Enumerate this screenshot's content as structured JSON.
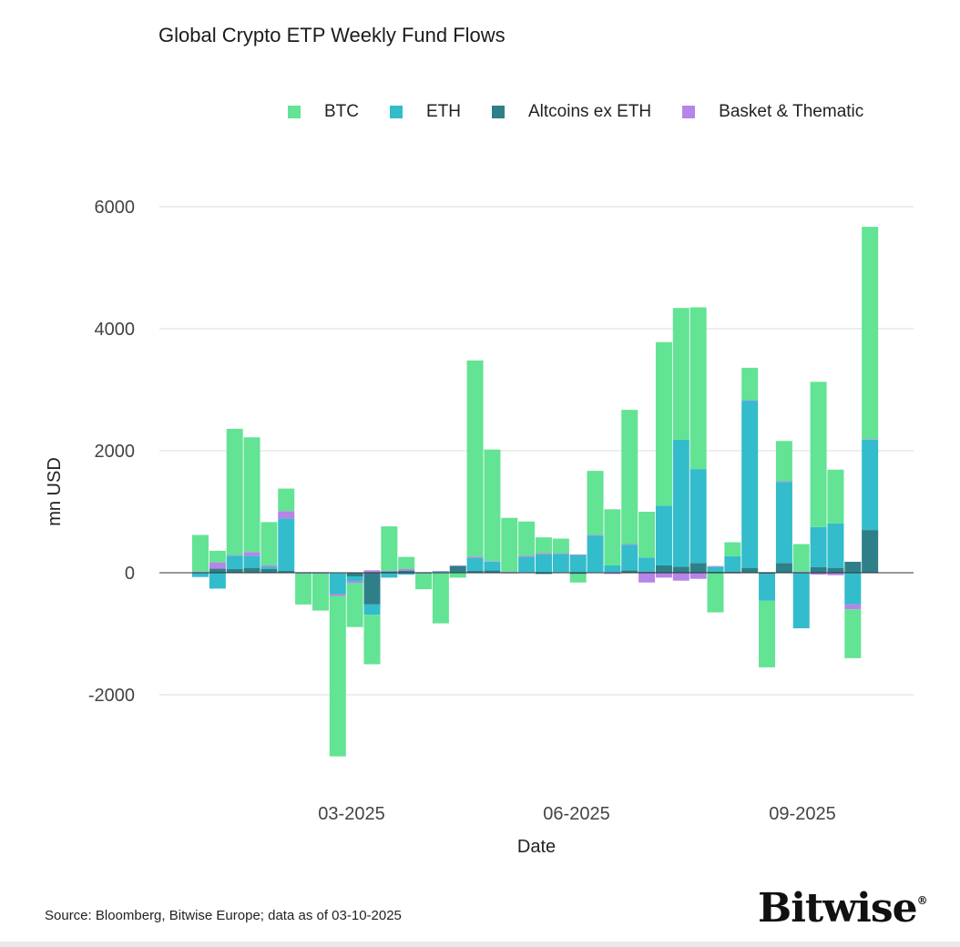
{
  "title": "Global Crypto ETP Weekly Fund Flows",
  "source": "Source: Bloomberg, Bitwise Europe; data as of  03-10-2025",
  "logo": "Bitwise",
  "colors": {
    "BTC": "#63e394",
    "ETH": "#33bccb",
    "Altcoins ex ETH": "#2e7f88",
    "Basket & Thematic": "#b784e8"
  },
  "chart_data": {
    "type": "bar",
    "stacked": true,
    "title": "Global Crypto ETP Weekly Fund Flows",
    "xlabel": "Date",
    "ylabel": "mn USD",
    "ylim": [
      -3000,
      6000
    ],
    "yticks": [
      -2000,
      0,
      2000,
      4000,
      6000
    ],
    "xtick_labels": [
      "03-2025",
      "06-2025",
      "09-2025"
    ],
    "grid": true,
    "legend_position": "top-right",
    "categories": [
      "2025-01-05",
      "2025-01-12",
      "2025-01-19",
      "2025-01-26",
      "2025-02-02",
      "2025-02-09",
      "2025-02-16",
      "2025-02-23",
      "2025-03-02",
      "2025-03-09",
      "2025-03-16",
      "2025-03-23",
      "2025-03-30",
      "2025-04-06",
      "2025-04-13",
      "2025-04-20",
      "2025-04-27",
      "2025-05-04",
      "2025-05-11",
      "2025-05-18",
      "2025-05-25",
      "2025-06-01",
      "2025-06-08",
      "2025-06-15",
      "2025-06-22",
      "2025-06-29",
      "2025-07-06",
      "2025-07-13",
      "2025-07-20",
      "2025-07-27",
      "2025-08-03",
      "2025-08-10",
      "2025-08-17",
      "2025-08-24",
      "2025-08-31",
      "2025-09-07",
      "2025-09-14",
      "2025-09-21",
      "2025-09-28",
      "2025-10-05"
    ],
    "series": [
      {
        "name": "Altcoins ex ETH",
        "values": [
          10,
          70,
          60,
          80,
          60,
          30,
          -10,
          -10,
          -10,
          -60,
          -520,
          20,
          30,
          -10,
          10,
          110,
          30,
          40,
          10,
          10,
          -20,
          10,
          -20,
          10,
          10,
          40,
          20,
          120,
          100,
          160,
          20,
          20,
          80,
          -20,
          160,
          10,
          90,
          80,
          180,
          700
        ]
      },
      {
        "name": "ETH",
        "values": [
          -70,
          -260,
          220,
          200,
          40,
          860,
          -10,
          -10,
          -340,
          -80,
          -170,
          -80,
          -30,
          -10,
          10,
          -10,
          210,
          140,
          -10,
          250,
          300,
          300,
          290,
          600,
          110,
          420,
          230,
          980,
          2080,
          1540,
          80,
          250,
          2740,
          -440,
          1330,
          -910,
          660,
          730,
          -520,
          1480
        ]
      },
      {
        "name": "Basket & Thematic",
        "values": [
          10,
          100,
          10,
          60,
          20,
          120,
          10,
          10,
          -30,
          -30,
          40,
          10,
          30,
          10,
          10,
          10,
          20,
          10,
          10,
          20,
          20,
          10,
          10,
          10,
          -20,
          10,
          -160,
          -80,
          -130,
          -100,
          10,
          -10,
          10,
          10,
          10,
          10,
          -30,
          -40,
          -80,
          10
        ]
      },
      {
        "name": "BTC",
        "values": [
          600,
          190,
          2070,
          1880,
          710,
          370,
          -500,
          -600,
          -2630,
          -720,
          -810,
          730,
          200,
          -250,
          -830,
          -70,
          3220,
          1830,
          880,
          560,
          260,
          240,
          -140,
          1050,
          920,
          2200,
          750,
          2680,
          2160,
          2650,
          -650,
          230,
          530,
          -1090,
          660,
          450,
          2380,
          880,
          -800,
          3480
        ]
      }
    ]
  }
}
